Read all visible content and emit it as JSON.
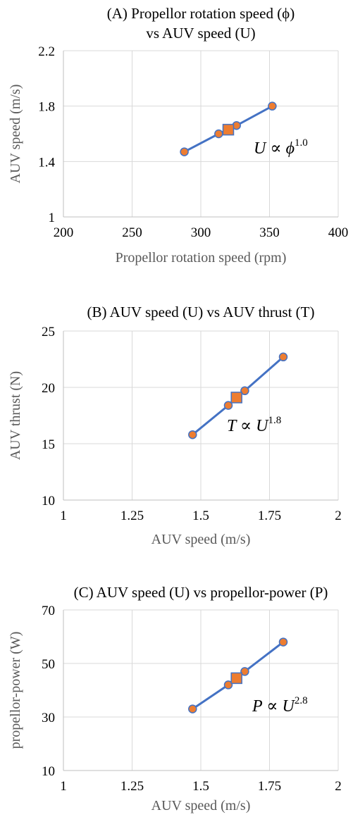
{
  "chart_data": [
    {
      "type": "line",
      "title": "(A) Propellor rotation speed (ϕ)",
      "subtitle": "vs AUV speed (U)",
      "xlabel": "Propellor rotation speed (rpm)",
      "ylabel": "AUV speed (m/s)",
      "xlim": [
        200,
        400
      ],
      "ylim": [
        1,
        2.2
      ],
      "x_ticks": [
        "200",
        "250",
        "300",
        "350",
        "400"
      ],
      "y_ticks": [
        "1",
        "1.4",
        "1.8",
        "2.2"
      ],
      "series": [
        {
          "x": [
            288,
            313,
            326,
            352
          ],
          "y": [
            1.47,
            1.6,
            1.66,
            1.8
          ]
        }
      ],
      "highlight": {
        "x": 320,
        "y": 1.63,
        "marker": "square"
      },
      "annotation": {
        "base": "U ∝ ϕ",
        "exponent": "1.0"
      },
      "grid": true
    },
    {
      "type": "line",
      "title": "(B) AUV speed (U) vs AUV thrust (T)",
      "subtitle": "",
      "xlabel": "AUV speed (m/s)",
      "ylabel": "AUV thrust (N)",
      "xlim": [
        1,
        2
      ],
      "ylim": [
        10,
        25
      ],
      "x_ticks": [
        "1",
        "1.25",
        "1.5",
        "1.75",
        "2"
      ],
      "y_ticks": [
        "10",
        "15",
        "20",
        "25"
      ],
      "series": [
        {
          "x": [
            1.47,
            1.6,
            1.66,
            1.8
          ],
          "y": [
            15.8,
            18.4,
            19.7,
            22.7
          ]
        }
      ],
      "highlight": {
        "x": 1.63,
        "y": 19.1,
        "marker": "square"
      },
      "annotation": {
        "base": "T ∝ U",
        "exponent": "1.8"
      },
      "grid": true
    },
    {
      "type": "line",
      "title": "(C) AUV speed (U) vs propellor-power (P)",
      "subtitle": "",
      "xlabel": "AUV speed (m/s)",
      "ylabel": "propellor-power (W)",
      "xlim": [
        1,
        2
      ],
      "ylim": [
        10,
        70
      ],
      "x_ticks": [
        "1",
        "1.25",
        "1.5",
        "1.75",
        "2"
      ],
      "y_ticks": [
        "10",
        "30",
        "50",
        "70"
      ],
      "series": [
        {
          "x": [
            1.47,
            1.6,
            1.66,
            1.8
          ],
          "y": [
            33,
            42,
            47,
            58
          ]
        }
      ],
      "highlight": {
        "x": 1.63,
        "y": 44.5,
        "marker": "square"
      },
      "annotation": {
        "base": "P ∝ U",
        "exponent": "2.8"
      },
      "grid": true
    }
  ]
}
